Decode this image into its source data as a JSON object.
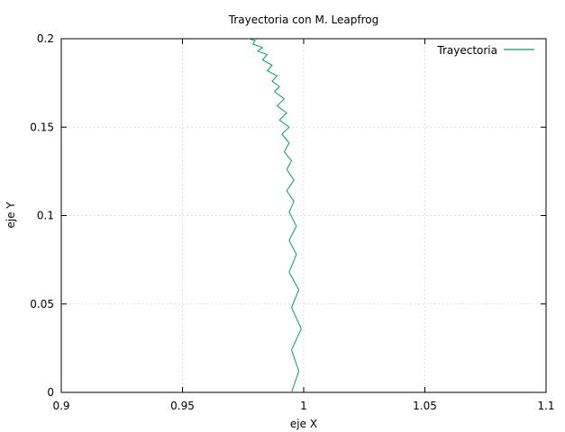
{
  "chart_data": {
    "type": "line",
    "title": "Trayectoria con M. Leapfrog",
    "xlabel": "eje X",
    "ylabel": "eje Y",
    "xlim": [
      0.9,
      1.1
    ],
    "ylim": [
      0,
      0.2
    ],
    "xticks": [
      0.9,
      0.95,
      1,
      1.05,
      1.1
    ],
    "xtick_labels": [
      "0.9",
      "0.95",
      "1",
      "1.05",
      "1.1"
    ],
    "yticks": [
      0,
      0.05,
      0.1,
      0.15,
      0.2
    ],
    "ytick_labels": [
      "0",
      "0.05",
      "0.1",
      "0.15",
      "0.2"
    ],
    "grid": true,
    "legend_position": "top-right",
    "series": [
      {
        "name": "Trayectoria",
        "color": "#009e73",
        "x": [
          0.995,
          0.998,
          0.995,
          0.999,
          0.995,
          0.998,
          0.994,
          0.997,
          0.994,
          0.997,
          0.994,
          0.996,
          0.993,
          0.996,
          0.993,
          0.995,
          0.992,
          0.994,
          0.991,
          0.994,
          0.99,
          0.993,
          0.989,
          0.992,
          0.988,
          0.99,
          0.987,
          0.989,
          0.985,
          0.987,
          0.983,
          0.985,
          0.981,
          0.983,
          0.979,
          0.98,
          0.977
        ],
        "y": [
          0.0,
          0.012,
          0.024,
          0.036,
          0.048,
          0.058,
          0.068,
          0.078,
          0.086,
          0.094,
          0.102,
          0.108,
          0.114,
          0.12,
          0.126,
          0.131,
          0.136,
          0.141,
          0.146,
          0.15,
          0.154,
          0.158,
          0.162,
          0.166,
          0.17,
          0.173,
          0.176,
          0.179,
          0.182,
          0.185,
          0.188,
          0.191,
          0.193,
          0.195,
          0.197,
          0.199,
          0.2
        ]
      }
    ]
  }
}
